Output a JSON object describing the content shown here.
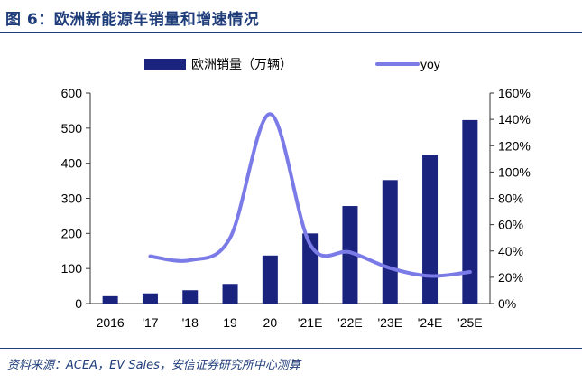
{
  "figure": {
    "title": "图 6：欧洲新能源车销量和增速情况",
    "source": "资料来源：ACEA，EV Sales，安信证券研究所中心测算"
  },
  "chart_data": {
    "type": "bar+line",
    "categories": [
      "2016",
      "'17",
      "'18",
      "19",
      "20",
      "'21E",
      "'22E",
      "'23E",
      "'24E",
      "'25E"
    ],
    "series": [
      {
        "name": "欧洲销量（万辆）",
        "kind": "bar",
        "axis": "left",
        "color": "#1a237e",
        "values": [
          21,
          29,
          38,
          56,
          137,
          200,
          278,
          352,
          424,
          523
        ]
      },
      {
        "name": "yoy",
        "kind": "line",
        "axis": "right",
        "color": "#7b7be8",
        "values": [
          null,
          36,
          33,
          50,
          144,
          45,
          39,
          27,
          21,
          24
        ]
      }
    ],
    "left_axis": {
      "ylim": [
        0,
        600
      ],
      "ticks": [
        0,
        100,
        200,
        300,
        400,
        500,
        600
      ]
    },
    "right_axis": {
      "ylim": [
        0,
        160
      ],
      "ticks": [
        0,
        20,
        40,
        60,
        80,
        100,
        120,
        140,
        160
      ],
      "unit": "%"
    },
    "legend_position": "top",
    "grid": false
  }
}
